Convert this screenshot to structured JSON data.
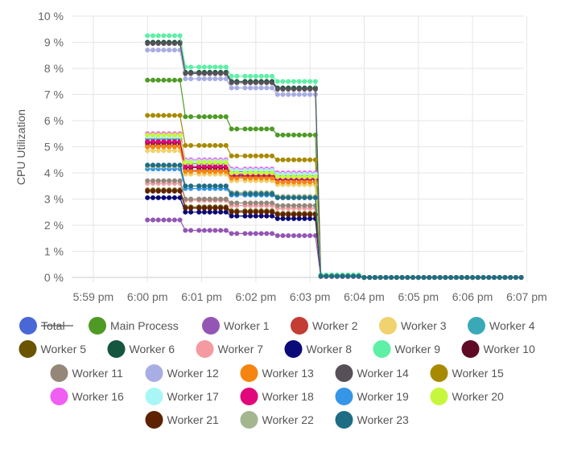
{
  "chart_data": {
    "type": "line",
    "title": "",
    "xlabel": "",
    "ylabel": "CPU Utilization",
    "ylim": [
      0,
      10
    ],
    "y_ticks": [
      "0 %",
      "1 %",
      "2 %",
      "3 %",
      "4 %",
      "5 %",
      "6 %",
      "7 %",
      "8 %",
      "9 %",
      "10 %"
    ],
    "x_ticks": [
      "5:59 pm",
      "6:00 pm",
      "6:01 pm",
      "6:02 pm",
      "6:03 pm",
      "6:04 pm",
      "6:05 pm",
      "6:06 pm",
      "6:07 pm"
    ],
    "xlim_minutes": [
      5.6,
      13.95
    ],
    "x_tick_minutes": [
      6,
      7,
      8,
      9,
      10,
      11,
      12,
      13,
      14
    ],
    "grid": true,
    "legend_position": "bottom",
    "x_points_minutes": [
      7.0,
      7.1,
      7.2,
      7.3,
      7.4,
      7.5,
      7.6,
      7.7,
      7.8,
      7.95,
      8.05,
      8.15,
      8.25,
      8.35,
      8.45,
      8.55,
      8.65,
      8.8,
      8.9,
      9.0,
      9.1,
      9.2,
      9.3,
      9.4,
      9.5,
      9.6,
      9.7,
      9.8,
      9.9,
      10.0,
      10.1,
      10.2,
      10.3,
      10.4,
      10.5,
      10.6,
      10.7,
      10.8,
      10.9,
      11.0,
      11.1,
      11.2,
      11.3,
      11.4,
      11.5,
      11.6,
      11.7,
      11.8,
      11.9,
      12.0,
      12.1,
      12.2,
      12.3,
      12.4,
      12.5,
      12.6,
      12.7,
      12.8,
      12.9,
      13.0,
      13.1,
      13.2,
      13.3,
      13.4,
      13.5,
      13.6,
      13.7,
      13.8,
      13.9
    ],
    "segments": [
      7,
      8,
      8,
      8,
      8,
      30
    ],
    "series": [
      {
        "name": "Total",
        "color": "#4a67d8",
        "hidden": true,
        "levels": [
          9.2,
          8.0,
          7.7,
          7.5,
          0.1,
          0.0
        ]
      },
      {
        "name": "Main Process",
        "color": "#4e9a25",
        "levels": [
          7.55,
          6.15,
          5.68,
          5.45,
          0.05,
          0.0
        ]
      },
      {
        "name": "Worker 1",
        "color": "#9456b4",
        "levels": [
          2.2,
          1.8,
          1.68,
          1.6,
          0.03,
          0.0
        ]
      },
      {
        "name": "Worker 2",
        "color": "#c33d35",
        "levels": [
          5.05,
          4.1,
          3.85,
          3.65,
          0.05,
          0.0
        ]
      },
      {
        "name": "Worker 3",
        "color": "#f0d26e",
        "levels": [
          4.85,
          3.95,
          3.7,
          3.55,
          0.05,
          0.0
        ]
      },
      {
        "name": "Worker 4",
        "color": "#3aa9b7",
        "levels": [
          5.3,
          4.35,
          4.05,
          3.9,
          0.05,
          0.0
        ]
      },
      {
        "name": "Worker 5",
        "color": "#6a5400",
        "levels": [
          3.35,
          2.7,
          2.55,
          2.45,
          0.05,
          0.0
        ]
      },
      {
        "name": "Worker 6",
        "color": "#14563e",
        "levels": [
          9.0,
          7.85,
          7.5,
          7.25,
          0.05,
          0.0
        ]
      },
      {
        "name": "Worker 7",
        "color": "#f39ba1",
        "levels": [
          3.6,
          2.95,
          2.75,
          2.65,
          0.05,
          0.0
        ]
      },
      {
        "name": "Worker 8",
        "color": "#0a0a78",
        "levels": [
          3.05,
          2.5,
          2.35,
          2.25,
          0.05,
          0.0
        ]
      },
      {
        "name": "Worker 9",
        "color": "#5df0a6",
        "levels": [
          9.25,
          8.05,
          7.7,
          7.5,
          0.1,
          0.0
        ]
      },
      {
        "name": "Worker 10",
        "color": "#5e0a24",
        "levels": [
          5.15,
          4.2,
          3.9,
          3.75,
          0.05,
          0.0
        ]
      },
      {
        "name": "Worker 11",
        "color": "#94877a",
        "levels": [
          3.7,
          3.0,
          2.85,
          2.75,
          0.05,
          0.0
        ]
      },
      {
        "name": "Worker 12",
        "color": "#a8ade3",
        "levels": [
          8.7,
          7.6,
          7.25,
          7.0,
          0.05,
          0.0
        ]
      },
      {
        "name": "Worker 13",
        "color": "#f68410",
        "levels": [
          5.0,
          4.05,
          3.8,
          3.65,
          0.05,
          0.0
        ]
      },
      {
        "name": "Worker 14",
        "color": "#585058",
        "levels": [
          8.95,
          7.8,
          7.45,
          7.2,
          0.05,
          0.0
        ]
      },
      {
        "name": "Worker 15",
        "color": "#a88a00",
        "levels": [
          6.2,
          5.05,
          4.65,
          4.5,
          0.05,
          0.0
        ]
      },
      {
        "name": "Worker 16",
        "color": "#f05ef2",
        "levels": [
          5.5,
          4.5,
          4.15,
          4.0,
          0.05,
          0.0
        ]
      },
      {
        "name": "Worker 17",
        "color": "#a8f6f6",
        "levels": [
          5.4,
          4.45,
          4.1,
          3.95,
          0.05,
          0.0
        ]
      },
      {
        "name": "Worker 18",
        "color": "#e0087a",
        "levels": [
          5.2,
          4.25,
          3.95,
          3.8,
          0.05,
          0.0
        ]
      },
      {
        "name": "Worker 19",
        "color": "#3596e8",
        "levels": [
          4.15,
          3.4,
          3.15,
          3.05,
          0.05,
          0.0
        ]
      },
      {
        "name": "Worker 20",
        "color": "#c7f73c",
        "levels": [
          5.45,
          4.4,
          4.0,
          3.85,
          0.05,
          0.0
        ]
      },
      {
        "name": "Worker 21",
        "color": "#5e2200",
        "levels": [
          3.3,
          2.65,
          2.5,
          2.4,
          0.05,
          0.0
        ]
      },
      {
        "name": "Worker 22",
        "color": "#a3b68f",
        "levels": [
          4.25,
          3.5,
          3.25,
          3.1,
          0.05,
          0.0
        ]
      },
      {
        "name": "Worker 23",
        "color": "#1f6d84",
        "levels": [
          4.3,
          3.5,
          3.2,
          3.05,
          0.05,
          0.0
        ]
      }
    ]
  }
}
